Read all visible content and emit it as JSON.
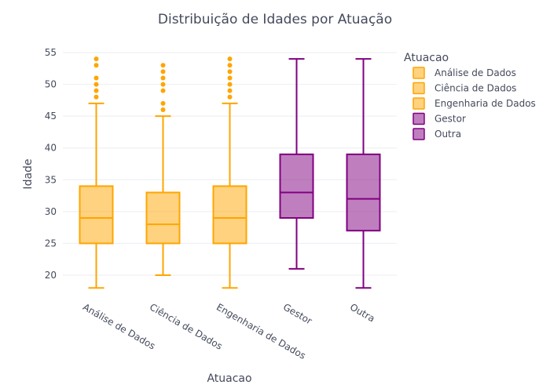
{
  "chart_data": {
    "type": "box",
    "title": "Distribuição de Idades por Atuação",
    "xlabel": "Atuacao",
    "ylabel": "Idade",
    "ylim": [
      17,
      56
    ],
    "yticks": [
      20,
      25,
      30,
      35,
      40,
      45,
      50,
      55
    ],
    "grid": true,
    "legend": {
      "title": "Atuacao",
      "position": "right"
    },
    "series": [
      {
        "name": "Análise de Dados",
        "color": "#FFA500",
        "min": 18,
        "q1": 25,
        "median": 29,
        "q3": 34,
        "max": 47,
        "outliers": [
          48,
          49,
          50,
          51,
          53,
          54
        ]
      },
      {
        "name": "Ciência de Dados",
        "color": "#FFA500",
        "min": 20,
        "q1": 25,
        "median": 28,
        "q3": 33,
        "max": 45,
        "outliers": [
          46,
          47,
          49,
          50,
          51,
          52,
          53
        ]
      },
      {
        "name": "Engenharia de Dados",
        "color": "#FFA500",
        "min": 18,
        "q1": 25,
        "median": 29,
        "q3": 34,
        "max": 47,
        "outliers": [
          48,
          49,
          50,
          51,
          52,
          53,
          54
        ]
      },
      {
        "name": "Gestor",
        "color": "#800080",
        "min": 21,
        "q1": 29,
        "median": 33,
        "q3": 39,
        "max": 54,
        "outliers": []
      },
      {
        "name": "Outra",
        "color": "#800080",
        "min": 18,
        "q1": 27,
        "median": 32,
        "q3": 39,
        "max": 54,
        "outliers": []
      }
    ]
  }
}
